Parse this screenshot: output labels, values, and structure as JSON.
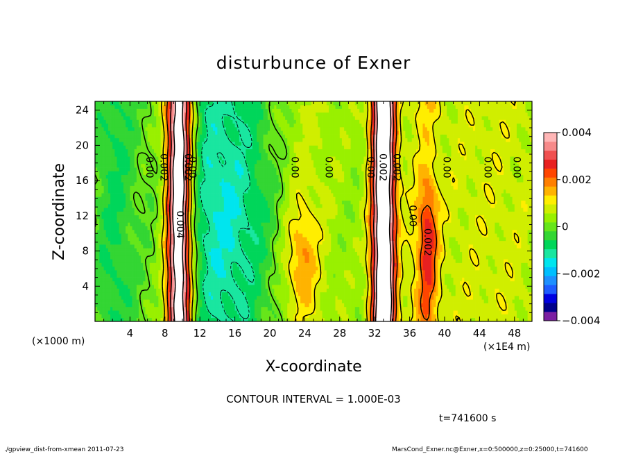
{
  "chart_data": {
    "type": "heatmap",
    "title": "disturbunce of Exner",
    "xlabel": "X-coordinate",
    "ylabel": "Z-coordinate",
    "x_unit_left": "(×1000 m)",
    "x_unit_right": "(×1E4 m)",
    "xlim": [
      0,
      50
    ],
    "ylim": [
      0,
      25
    ],
    "x_ticks": [
      4,
      8,
      12,
      16,
      20,
      24,
      28,
      32,
      36,
      40,
      44,
      48
    ],
    "y_ticks": [
      4,
      8,
      12,
      16,
      20,
      24
    ],
    "colorbar": {
      "range": [
        -0.004,
        0.004
      ],
      "tick_values": [
        -0.004,
        -0.002,
        0,
        0.002,
        0.004
      ],
      "tick_labels": [
        "−0.004",
        "−0.002",
        "0",
        "0.002",
        "0.004"
      ],
      "colors": [
        "#7b1fa2",
        "#00008b",
        "#0000e0",
        "#1e5cff",
        "#1e90ff",
        "#00bfff",
        "#00e5ee",
        "#19e6a0",
        "#00d65a",
        "#33d633",
        "#66e61a",
        "#99f000",
        "#d0ee00",
        "#ffee00",
        "#ffb300",
        "#ff7f00",
        "#ff4500",
        "#e82020",
        "#f05050",
        "#f78a8a",
        "#ffb6b6"
      ]
    },
    "contour_labels": [
      {
        "text": "0.00",
        "x": 6.2,
        "z": 17.5
      },
      {
        "text": "0.002",
        "x": 7.8,
        "z": 17.5
      },
      {
        "text": "0.002",
        "x": 10.6,
        "z": 17.5
      },
      {
        "text": "0.00",
        "x": 11.1,
        "z": 17.5
      },
      {
        "text": "0.004",
        "x": 9.7,
        "z": 11.0
      },
      {
        "text": "0.00",
        "x": 22.8,
        "z": 17.5
      },
      {
        "text": "0.00",
        "x": 26.7,
        "z": 17.5
      },
      {
        "text": "0.00",
        "x": 31.5,
        "z": 17.5
      },
      {
        "text": "0.002",
        "x": 32.9,
        "z": 17.5
      },
      {
        "text": "0.002",
        "x": 34.5,
        "z": 17.5
      },
      {
        "text": "0.00",
        "x": 36.3,
        "z": 12.0
      },
      {
        "text": "0.002",
        "x": 38.0,
        "z": 9.0
      },
      {
        "text": "0.00",
        "x": 40.2,
        "z": 17.5
      },
      {
        "text": "0.00",
        "x": 44.9,
        "z": 17.5
      },
      {
        "text": "0.00",
        "x": 48.2,
        "z": 17.5
      }
    ],
    "contour_interval_text": "CONTOUR INTERVAL = 1.000E-03",
    "time_text": "t=741600 s",
    "footer_left": "./gpview_dist-from-xmean  2011-07-23",
    "footer_right": "MarsCond_Exner.nc@Exner,x=0:500000,z=0:25000,t=741600"
  }
}
